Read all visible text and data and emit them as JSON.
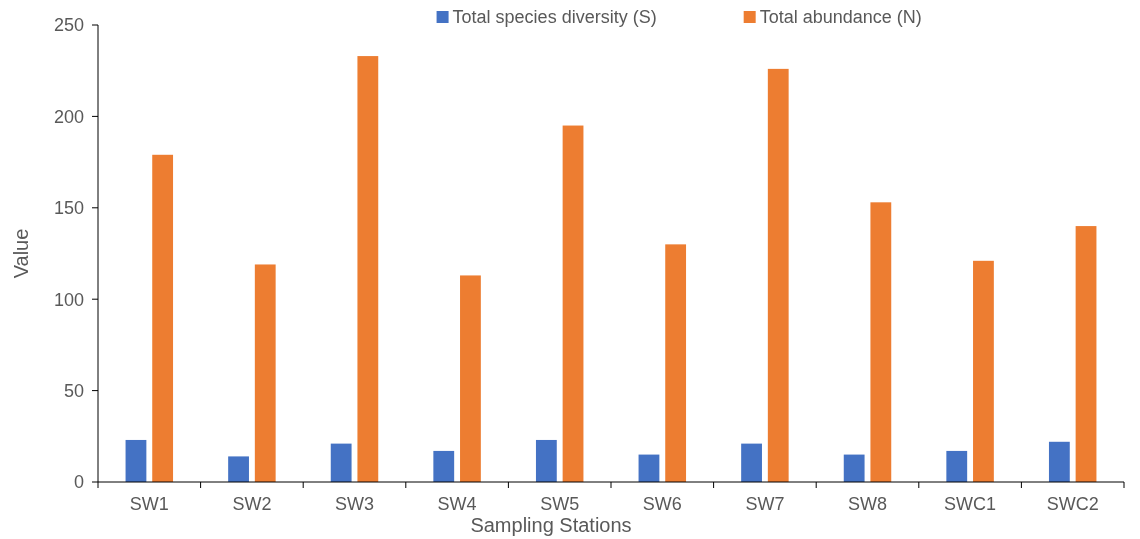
{
  "chart_data": {
    "type": "bar",
    "xlabel": "Sampling Stations",
    "ylabel": "Value",
    "categories": [
      "SW1",
      "SW2",
      "SW3",
      "SW4",
      "SW5",
      "SW6",
      "SW7",
      "SW8",
      "SWC1",
      "SWC2"
    ],
    "series": [
      {
        "name": "Total species diversity (S)",
        "color": "#4472c4",
        "values": [
          23,
          14,
          21,
          17,
          23,
          15,
          21,
          15,
          17,
          22
        ]
      },
      {
        "name": "Total abundance (N)",
        "color": "#ed7d31",
        "values": [
          179,
          119,
          233,
          113,
          195,
          130,
          226,
          153,
          121,
          140
        ]
      }
    ],
    "ylim": [
      0,
      250
    ],
    "yticks": [
      0,
      50,
      100,
      150,
      200,
      250
    ],
    "grid": false,
    "legend": "top"
  }
}
